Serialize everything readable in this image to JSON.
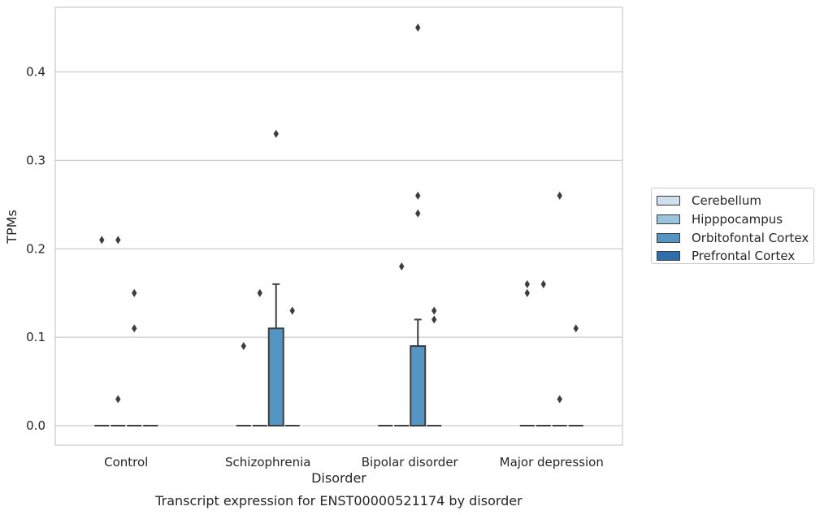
{
  "chart_data": {
    "type": "box",
    "title": "Transcript expression for ENST00000521174 by disorder",
    "xlabel": "Disorder",
    "ylabel": "TPMs",
    "categories": [
      "Control",
      "Schizophrenia",
      "Bipolar disorder",
      "Major depression"
    ],
    "hue_order": [
      "Cerebellum",
      "Hipppocampus",
      "Orbitofontal Cortex",
      "Prefrontal Cortex"
    ],
    "colors": {
      "Cerebellum": "#cfdfee",
      "Hipppocampus": "#9ac3de",
      "Orbitofontal Cortex": "#5595c4",
      "Prefrontal Cortex": "#2f6ea8",
      "edge": "#3d3d3d",
      "grid": "#cccccc"
    },
    "ylim": [
      -0.022,
      0.473
    ],
    "yticks": [
      0.0,
      0.1,
      0.2,
      0.3,
      0.4
    ],
    "ytick_labels": [
      "0.0",
      "0.1",
      "0.2",
      "0.3",
      "0.4"
    ],
    "grid": true,
    "legend_position": "outside-right",
    "boxes": [
      {
        "category": "Control",
        "tissue": "Cerebellum",
        "q1": 0,
        "median": 0,
        "q3": 0,
        "whisker_low": 0,
        "whisker_high": 0,
        "outliers": [
          0.21
        ]
      },
      {
        "category": "Control",
        "tissue": "Hipppocampus",
        "q1": 0,
        "median": 0,
        "q3": 0,
        "whisker_low": 0,
        "whisker_high": 0,
        "outliers": [
          0.21,
          0.03
        ]
      },
      {
        "category": "Control",
        "tissue": "Orbitofontal Cortex",
        "q1": 0,
        "median": 0,
        "q3": 0,
        "whisker_low": 0,
        "whisker_high": 0,
        "outliers": [
          0.15,
          0.11
        ]
      },
      {
        "category": "Control",
        "tissue": "Prefrontal Cortex",
        "q1": 0,
        "median": 0,
        "q3": 0,
        "whisker_low": 0,
        "whisker_high": 0,
        "outliers": []
      },
      {
        "category": "Schizophrenia",
        "tissue": "Cerebellum",
        "q1": 0,
        "median": 0,
        "q3": 0,
        "whisker_low": 0,
        "whisker_high": 0,
        "outliers": [
          0.09
        ]
      },
      {
        "category": "Schizophrenia",
        "tissue": "Hipppocampus",
        "q1": 0,
        "median": 0,
        "q3": 0,
        "whisker_low": 0,
        "whisker_high": 0,
        "outliers": [
          0.15
        ]
      },
      {
        "category": "Schizophrenia",
        "tissue": "Orbitofontal Cortex",
        "q1": 0,
        "median": 0,
        "q3": 0.11,
        "whisker_low": 0,
        "whisker_high": 0.16,
        "outliers": [
          0.33
        ]
      },
      {
        "category": "Schizophrenia",
        "tissue": "Prefrontal Cortex",
        "q1": 0,
        "median": 0,
        "q3": 0,
        "whisker_low": 0,
        "whisker_high": 0,
        "outliers": [
          0.13
        ]
      },
      {
        "category": "Bipolar disorder",
        "tissue": "Cerebellum",
        "q1": 0,
        "median": 0,
        "q3": 0,
        "whisker_low": 0,
        "whisker_high": 0,
        "outliers": []
      },
      {
        "category": "Bipolar disorder",
        "tissue": "Hipppocampus",
        "q1": 0,
        "median": 0,
        "q3": 0,
        "whisker_low": 0,
        "whisker_high": 0,
        "outliers": [
          0.18
        ]
      },
      {
        "category": "Bipolar disorder",
        "tissue": "Orbitofontal Cortex",
        "q1": 0,
        "median": 0,
        "q3": 0.09,
        "whisker_low": 0,
        "whisker_high": 0.12,
        "outliers": [
          0.45,
          0.26,
          0.24
        ]
      },
      {
        "category": "Bipolar disorder",
        "tissue": "Prefrontal Cortex",
        "q1": 0,
        "median": 0,
        "q3": 0,
        "whisker_low": 0,
        "whisker_high": 0,
        "outliers": [
          0.13,
          0.12
        ]
      },
      {
        "category": "Major depression",
        "tissue": "Cerebellum",
        "q1": 0,
        "median": 0,
        "q3": 0,
        "whisker_low": 0,
        "whisker_high": 0,
        "outliers": [
          0.16,
          0.15
        ]
      },
      {
        "category": "Major depression",
        "tissue": "Hipppocampus",
        "q1": 0,
        "median": 0,
        "q3": 0,
        "whisker_low": 0,
        "whisker_high": 0,
        "outliers": [
          0.16
        ]
      },
      {
        "category": "Major depression",
        "tissue": "Orbitofontal Cortex",
        "q1": 0,
        "median": 0,
        "q3": 0,
        "whisker_low": 0,
        "whisker_high": 0,
        "outliers": [
          0.26,
          0.03
        ]
      },
      {
        "category": "Major depression",
        "tissue": "Prefrontal Cortex",
        "q1": 0,
        "median": 0,
        "q3": 0,
        "whisker_low": 0,
        "whisker_high": 0,
        "outliers": [
          0.11
        ]
      }
    ]
  }
}
